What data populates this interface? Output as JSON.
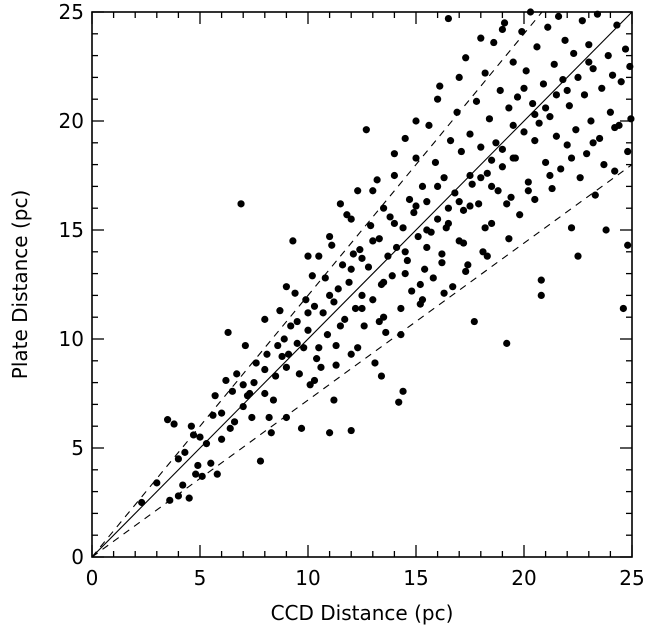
{
  "chart_data": {
    "type": "scatter",
    "title": "",
    "xlabel": "CCD Distance (pc)",
    "ylabel": "Plate Distance (pc)",
    "xlim": [
      0,
      25
    ],
    "ylim": [
      0,
      25
    ],
    "xticks": [
      0,
      5,
      10,
      15,
      20,
      25
    ],
    "yticks": [
      0,
      5,
      10,
      15,
      20,
      25
    ],
    "minor_tick_step": 1,
    "grid": false,
    "reference_lines": [
      {
        "slope": 1.0,
        "style": "solid"
      },
      {
        "slope": 1.2,
        "style": "dashed"
      },
      {
        "slope": 0.72,
        "style": "dashed"
      }
    ],
    "points": [
      [
        2.3,
        2.5
      ],
      [
        3.5,
        6.3
      ],
      [
        3.8,
        6.1
      ],
      [
        3.6,
        2.6
      ],
      [
        4.0,
        2.8
      ],
      [
        4.2,
        3.3
      ],
      [
        4.3,
        4.8
      ],
      [
        4.5,
        2.7
      ],
      [
        4.6,
        6.0
      ],
      [
        4.7,
        5.6
      ],
      [
        4.8,
        3.8
      ],
      [
        4.9,
        4.2
      ],
      [
        5.1,
        3.7
      ],
      [
        5.3,
        5.2
      ],
      [
        5.5,
        4.3
      ],
      [
        5.6,
        6.5
      ],
      [
        5.7,
        7.4
      ],
      [
        5.8,
        3.8
      ],
      [
        6.0,
        5.4
      ],
      [
        6.2,
        8.1
      ],
      [
        6.3,
        10.3
      ],
      [
        6.4,
        5.9
      ],
      [
        6.5,
        7.6
      ],
      [
        6.6,
        6.2
      ],
      [
        6.7,
        8.4
      ],
      [
        6.9,
        16.2
      ],
      [
        7.0,
        6.9
      ],
      [
        7.1,
        9.7
      ],
      [
        7.2,
        7.4
      ],
      [
        7.3,
        7.5
      ],
      [
        7.4,
        6.4
      ],
      [
        7.5,
        8.0
      ],
      [
        7.6,
        8.9
      ],
      [
        7.8,
        4.4
      ],
      [
        8.0,
        8.6
      ],
      [
        8.1,
        9.3
      ],
      [
        8.2,
        6.4
      ],
      [
        8.3,
        5.7
      ],
      [
        8.4,
        7.2
      ],
      [
        8.5,
        8.3
      ],
      [
        8.6,
        9.7
      ],
      [
        8.7,
        11.3
      ],
      [
        8.8,
        9.2
      ],
      [
        8.9,
        10.0
      ],
      [
        9.0,
        6.4
      ],
      [
        9.1,
        9.3
      ],
      [
        9.2,
        10.6
      ],
      [
        9.3,
        14.5
      ],
      [
        9.4,
        12.1
      ],
      [
        9.5,
        10.8
      ],
      [
        9.6,
        8.4
      ],
      [
        9.7,
        5.9
      ],
      [
        9.8,
        9.6
      ],
      [
        9.9,
        11.8
      ],
      [
        10.0,
        10.4
      ],
      [
        10.1,
        7.9
      ],
      [
        10.2,
        12.9
      ],
      [
        10.3,
        11.5
      ],
      [
        10.4,
        9.1
      ],
      [
        10.5,
        13.8
      ],
      [
        10.6,
        8.7
      ],
      [
        10.7,
        11.2
      ],
      [
        10.8,
        12.8
      ],
      [
        10.9,
        10.2
      ],
      [
        11.0,
        5.7
      ],
      [
        11.1,
        14.3
      ],
      [
        11.2,
        11.7
      ],
      [
        11.3,
        9.7
      ],
      [
        11.4,
        12.3
      ],
      [
        11.5,
        16.2
      ],
      [
        11.6,
        13.4
      ],
      [
        11.7,
        10.9
      ],
      [
        11.8,
        15.7
      ],
      [
        11.9,
        12.6
      ],
      [
        12.0,
        9.3
      ],
      [
        12.1,
        13.9
      ],
      [
        12.2,
        11.4
      ],
      [
        12.3,
        16.8
      ],
      [
        12.4,
        14.1
      ],
      [
        12.5,
        12.0
      ],
      [
        12.6,
        10.6
      ],
      [
        12.7,
        19.6
      ],
      [
        12.8,
        13.3
      ],
      [
        12.9,
        15.2
      ],
      [
        13.0,
        11.8
      ],
      [
        13.1,
        8.9
      ],
      [
        13.2,
        17.3
      ],
      [
        13.3,
        14.6
      ],
      [
        13.4,
        12.5
      ],
      [
        13.5,
        16.0
      ],
      [
        13.6,
        10.3
      ],
      [
        13.7,
        13.8
      ],
      [
        13.8,
        15.6
      ],
      [
        13.9,
        12.9
      ],
      [
        14.0,
        17.5
      ],
      [
        14.1,
        14.2
      ],
      [
        14.2,
        7.1
      ],
      [
        14.3,
        11.4
      ],
      [
        14.4,
        15.1
      ],
      [
        14.5,
        19.2
      ],
      [
        14.6,
        13.6
      ],
      [
        14.7,
        16.4
      ],
      [
        14.8,
        12.2
      ],
      [
        14.9,
        15.8
      ],
      [
        15.0,
        18.3
      ],
      [
        15.1,
        14.7
      ],
      [
        15.2,
        11.6
      ],
      [
        15.3,
        17.0
      ],
      [
        15.4,
        13.2
      ],
      [
        15.5,
        16.3
      ],
      [
        15.6,
        19.8
      ],
      [
        15.7,
        14.9
      ],
      [
        15.8,
        12.8
      ],
      [
        15.9,
        18.1
      ],
      [
        16.0,
        15.5
      ],
      [
        16.1,
        21.6
      ],
      [
        16.2,
        13.9
      ],
      [
        16.3,
        17.4
      ],
      [
        16.4,
        15.1
      ],
      [
        16.5,
        24.7
      ],
      [
        16.6,
        19.1
      ],
      [
        16.7,
        12.4
      ],
      [
        16.8,
        16.7
      ],
      [
        16.9,
        20.4
      ],
      [
        17.0,
        14.5
      ],
      [
        17.1,
        18.6
      ],
      [
        17.2,
        15.9
      ],
      [
        17.3,
        22.9
      ],
      [
        17.4,
        13.4
      ],
      [
        17.5,
        19.4
      ],
      [
        17.6,
        17.1
      ],
      [
        17.7,
        10.8
      ],
      [
        17.8,
        20.9
      ],
      [
        17.9,
        16.2
      ],
      [
        18.0,
        18.8
      ],
      [
        18.1,
        14.0
      ],
      [
        18.2,
        22.2
      ],
      [
        18.3,
        17.6
      ],
      [
        18.4,
        20.1
      ],
      [
        18.5,
        15.3
      ],
      [
        18.6,
        23.6
      ],
      [
        18.7,
        19.0
      ],
      [
        18.8,
        16.8
      ],
      [
        18.9,
        21.4
      ],
      [
        19.0,
        17.9
      ],
      [
        19.1,
        24.5
      ],
      [
        19.2,
        9.8
      ],
      [
        19.3,
        20.6
      ],
      [
        19.4,
        16.5
      ],
      [
        19.5,
        22.7
      ],
      [
        19.6,
        18.3
      ],
      [
        19.7,
        21.1
      ],
      [
        19.8,
        15.7
      ],
      [
        19.9,
        24.1
      ],
      [
        20.0,
        19.5
      ],
      [
        20.1,
        22.3
      ],
      [
        20.2,
        17.2
      ],
      [
        20.3,
        25.0
      ],
      [
        20.4,
        20.8
      ],
      [
        20.5,
        16.4
      ],
      [
        20.6,
        23.4
      ],
      [
        20.7,
        19.9
      ],
      [
        20.8,
        12.0
      ],
      [
        20.9,
        21.7
      ],
      [
        21.0,
        18.1
      ],
      [
        21.1,
        24.3
      ],
      [
        21.2,
        20.2
      ],
      [
        21.3,
        16.9
      ],
      [
        21.4,
        22.6
      ],
      [
        21.5,
        19.3
      ],
      [
        21.6,
        24.8
      ],
      [
        21.7,
        17.8
      ],
      [
        21.8,
        21.9
      ],
      [
        21.9,
        23.7
      ],
      [
        22.0,
        18.9
      ],
      [
        22.1,
        20.7
      ],
      [
        22.2,
        15.1
      ],
      [
        22.3,
        23.1
      ],
      [
        22.4,
        19.6
      ],
      [
        22.5,
        22.0
      ],
      [
        22.6,
        17.4
      ],
      [
        22.7,
        24.6
      ],
      [
        22.8,
        21.2
      ],
      [
        22.9,
        18.5
      ],
      [
        23.0,
        23.5
      ],
      [
        23.1,
        20.0
      ],
      [
        23.2,
        22.4
      ],
      [
        23.3,
        16.6
      ],
      [
        23.4,
        24.9
      ],
      [
        23.5,
        19.2
      ],
      [
        23.6,
        21.5
      ],
      [
        23.7,
        18.0
      ],
      [
        23.8,
        15.0
      ],
      [
        23.9,
        23.0
      ],
      [
        24.0,
        20.4
      ],
      [
        24.1,
        22.1
      ],
      [
        24.2,
        17.7
      ],
      [
        24.3,
        24.4
      ],
      [
        24.4,
        19.8
      ],
      [
        24.5,
        21.8
      ],
      [
        24.6,
        11.4
      ],
      [
        24.7,
        23.3
      ],
      [
        24.8,
        18.6
      ],
      [
        24.9,
        22.5
      ],
      [
        24.95,
        20.1
      ],
      [
        13.5,
        11.0
      ],
      [
        12.0,
        13.2
      ],
      [
        11.0,
        12.0
      ],
      [
        10.0,
        11.2
      ],
      [
        9.5,
        9.8
      ],
      [
        12.5,
        13.7
      ],
      [
        13.0,
        14.5
      ],
      [
        14.5,
        14.0
      ],
      [
        15.5,
        15.0
      ],
      [
        16.5,
        16.0
      ],
      [
        17.5,
        17.5
      ],
      [
        18.5,
        18.2
      ],
      [
        19.5,
        19.8
      ],
      [
        20.5,
        20.3
      ],
      [
        21.5,
        21.2
      ],
      [
        14.0,
        15.3
      ],
      [
        15.0,
        16.1
      ],
      [
        16.0,
        17.0
      ],
      [
        17.0,
        16.3
      ],
      [
        18.0,
        17.4
      ],
      [
        19.0,
        18.7
      ],
      [
        20.0,
        21.5
      ],
      [
        21.0,
        20.6
      ],
      [
        22.0,
        21.4
      ],
      [
        23.0,
        22.7
      ],
      [
        11.5,
        10.6
      ],
      [
        12.5,
        11.4
      ],
      [
        13.5,
        12.6
      ],
      [
        14.5,
        13.0
      ],
      [
        15.5,
        14.2
      ],
      [
        16.5,
        15.3
      ],
      [
        17.5,
        16.1
      ],
      [
        18.5,
        17.0
      ],
      [
        19.5,
        18.3
      ],
      [
        20.5,
        19.1
      ],
      [
        10.5,
        9.6
      ],
      [
        9.0,
        8.7
      ],
      [
        8.0,
        7.5
      ],
      [
        7.0,
        7.9
      ],
      [
        6.0,
        6.6
      ],
      [
        5.0,
        5.5
      ],
      [
        4.0,
        4.5
      ],
      [
        3.0,
        3.4
      ],
      [
        13.0,
        16.8
      ],
      [
        14.0,
        18.5
      ],
      [
        15.0,
        20.0
      ],
      [
        16.0,
        21.0
      ],
      [
        17.0,
        22.0
      ],
      [
        18.0,
        23.8
      ],
      [
        19.0,
        24.2
      ],
      [
        12.0,
        15.5
      ],
      [
        11.0,
        14.7
      ],
      [
        10.0,
        13.8
      ],
      [
        9.0,
        12.4
      ],
      [
        8.0,
        10.9
      ],
      [
        15.2,
        12.5
      ],
      [
        16.2,
        13.5
      ],
      [
        17.2,
        14.4
      ],
      [
        18.2,
        15.1
      ],
      [
        19.2,
        16.2
      ],
      [
        20.2,
        16.8
      ],
      [
        21.2,
        17.5
      ],
      [
        22.2,
        18.3
      ],
      [
        23.2,
        19.0
      ],
      [
        24.2,
        19.7
      ],
      [
        14.3,
        10.2
      ],
      [
        15.3,
        11.8
      ],
      [
        16.3,
        12.1
      ],
      [
        17.3,
        13.1
      ],
      [
        18.3,
        13.8
      ],
      [
        19.3,
        14.6
      ],
      [
        13.3,
        10.8
      ],
      [
        12.3,
        9.6
      ],
      [
        11.3,
        8.8
      ],
      [
        10.3,
        8.1
      ],
      [
        20.8,
        12.7
      ],
      [
        24.8,
        14.3
      ],
      [
        22.5,
        13.8
      ],
      [
        14.4,
        7.6
      ],
      [
        13.4,
        8.3
      ],
      [
        11.2,
        7.2
      ],
      [
        12.0,
        5.8
      ]
    ]
  }
}
